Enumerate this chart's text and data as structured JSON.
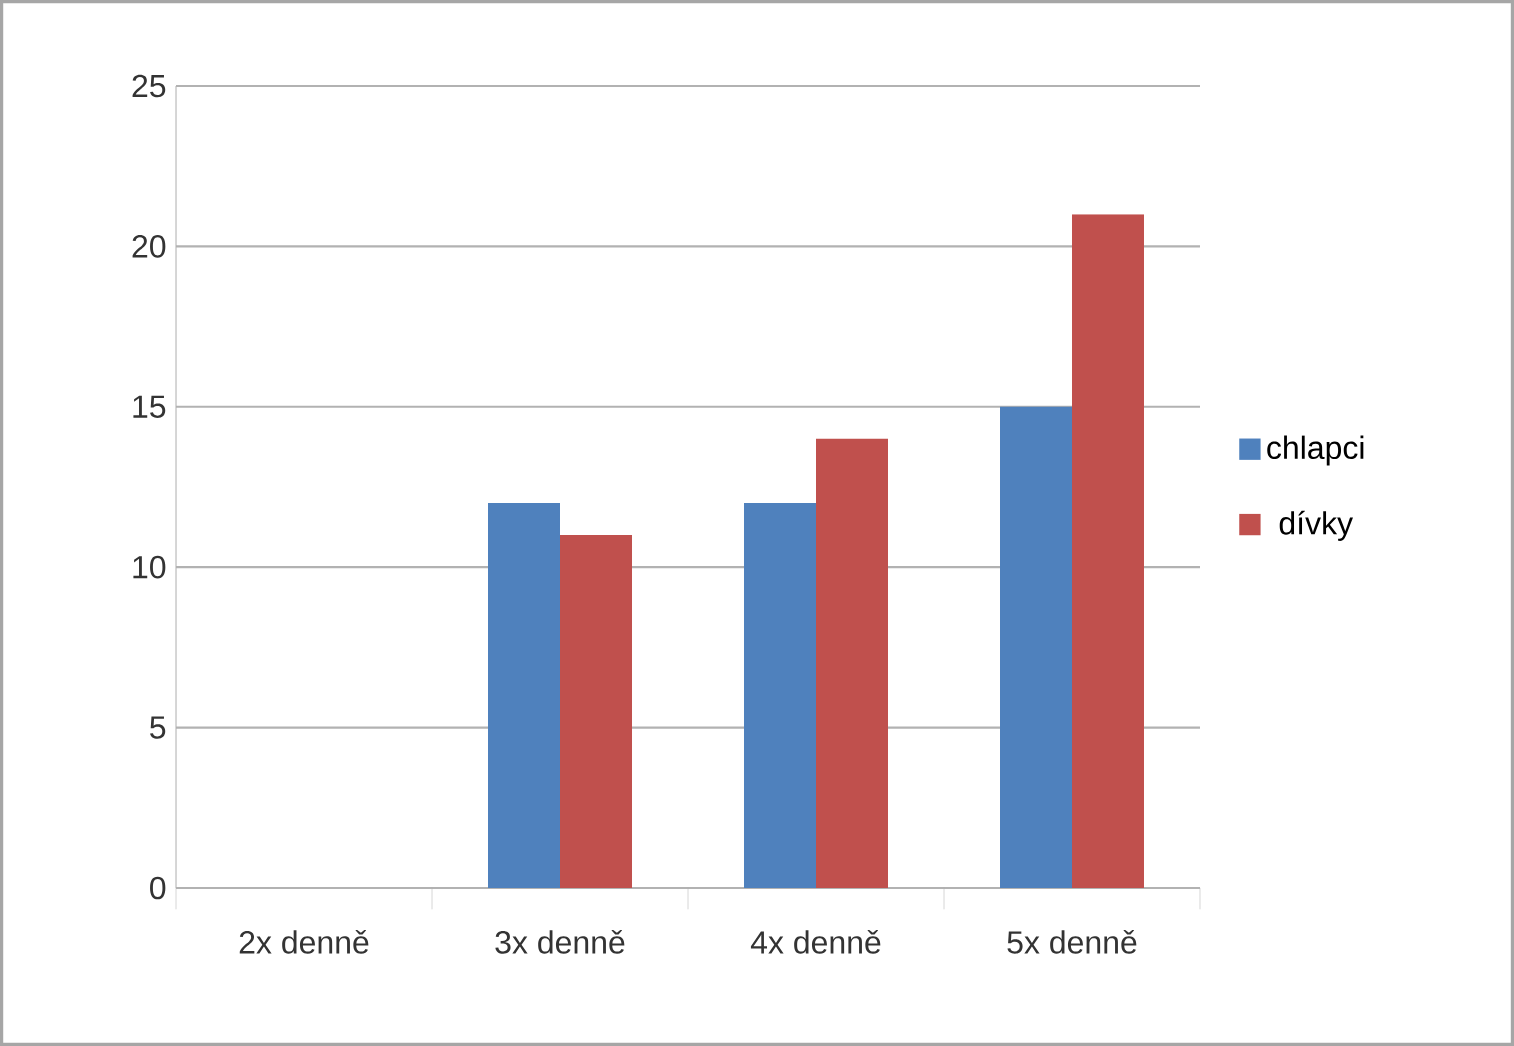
{
  "chart_data": {
    "type": "bar",
    "categories": [
      "2x denně",
      "3x denně",
      "4x denně",
      "5x denně"
    ],
    "series": [
      {
        "name": "chlapci",
        "color": "#4f81bd",
        "values": [
          0,
          12,
          12,
          15
        ]
      },
      {
        "name": "dívky",
        "color": "#c0504d",
        "values": [
          0,
          11,
          14,
          21
        ]
      }
    ],
    "ylim": [
      0,
      25
    ],
    "yticks": [
      0,
      5,
      10,
      15,
      20,
      25
    ],
    "grid": "y",
    "legend": "right"
  }
}
